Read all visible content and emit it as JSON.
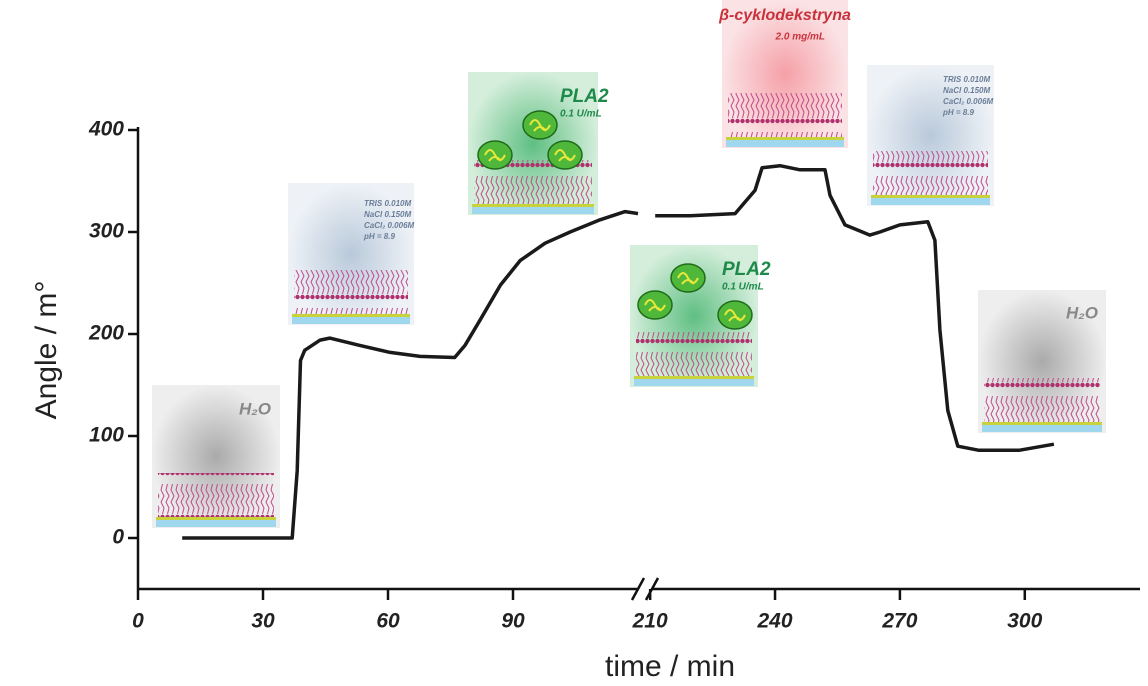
{
  "chart_data": {
    "type": "line",
    "color": "#1a1a1a",
    "y_label": "Angle / m°",
    "x_label": "time / min",
    "ylim": [
      -50,
      400
    ],
    "yticks": [
      0,
      100,
      200,
      300,
      400
    ],
    "segments": [
      {
        "xlim": [
          0,
          120
        ],
        "xticks": [
          0,
          30,
          60,
          90
        ],
        "x": [
          10.6,
          37,
          38.2,
          39,
          40,
          43.7,
          46,
          53,
          60.5,
          67.7,
          76,
          78.5,
          82,
          87,
          91.7,
          97.7,
          103.7,
          110.9,
          116.9,
          120
        ],
        "values": [
          0,
          0,
          66,
          174,
          184,
          194,
          196,
          189,
          182,
          178,
          177,
          189,
          213,
          248,
          272,
          289,
          300,
          312,
          320,
          318
        ]
      },
      {
        "xlim": [
          209,
          326
        ],
        "xticks": [
          210,
          240,
          270,
          300
        ],
        "x": [
          211.2,
          219.6,
          230.4,
          235.2,
          236.9,
          241.2,
          246,
          252,
          253.2,
          256.8,
          262.8,
          265.2,
          270,
          276.7,
          278.4,
          279.6,
          281.5,
          283.9,
          289,
          298.6,
          307
        ],
        "values": [
          316,
          316,
          318,
          341,
          363,
          365,
          361,
          361,
          336,
          307,
          297,
          300,
          307,
          310,
          292,
          204,
          125,
          90,
          86,
          86,
          92
        ]
      }
    ],
    "annotations": [
      [
        "H₂O"
      ],
      [
        "TRIS 0.010M",
        "NaCl 0.150M",
        "CaCl₂ 0.006M",
        "pH = 8.9"
      ],
      [
        "PLA2",
        "0.1 U/mL"
      ],
      [
        "PLA2",
        "0.1 U/mL"
      ],
      [
        "β-cyklodekstryna",
        "2.0 mg/mL"
      ],
      [
        "TRIS 0.010M",
        "NaCl 0.150M",
        "CaCl₂ 0.006M",
        "pH = 8.9"
      ],
      [
        "H₂O"
      ]
    ]
  }
}
